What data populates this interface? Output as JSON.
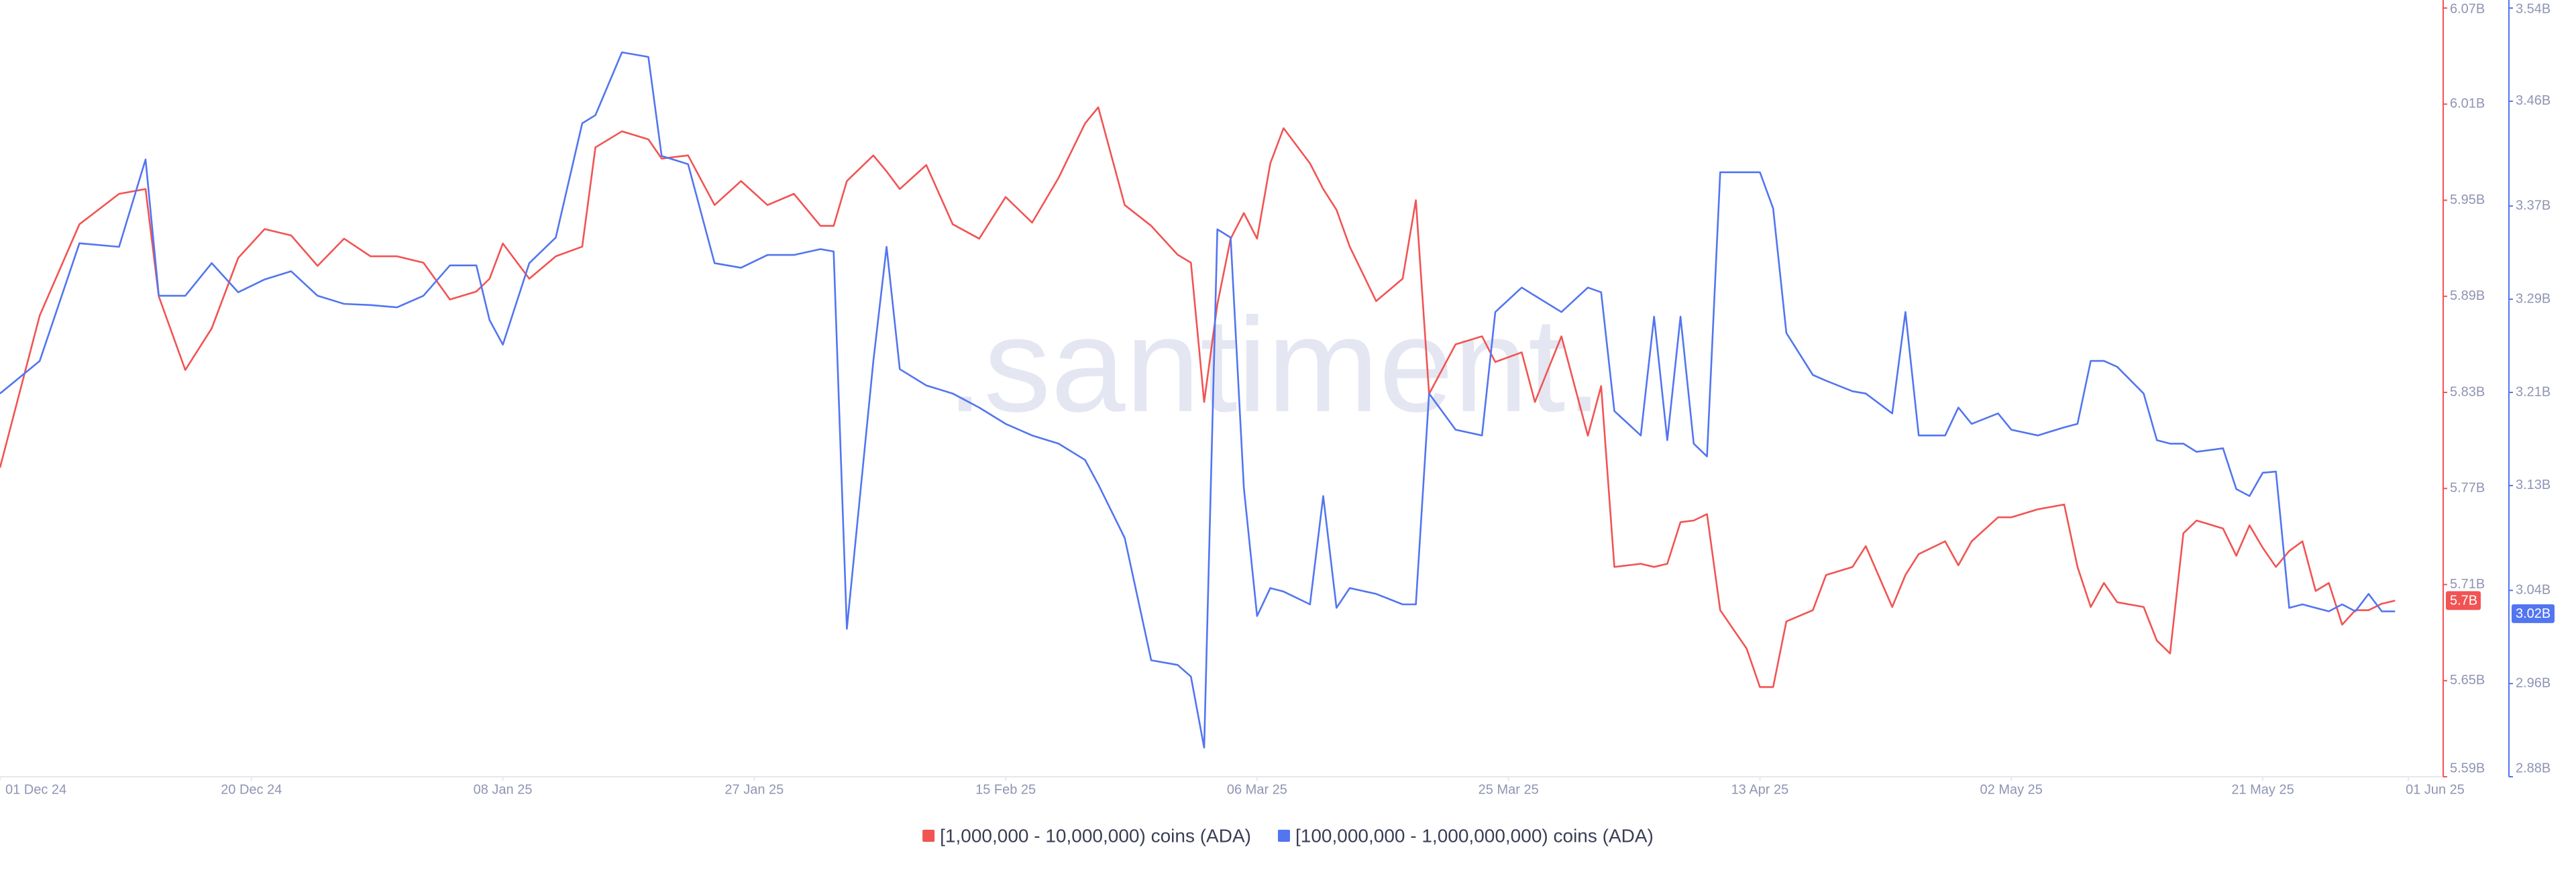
{
  "chart_data": {
    "type": "line",
    "watermark": ".santiment.",
    "x": [
      "2024-12-01",
      "2024-12-04",
      "2024-12-07",
      "2024-12-10",
      "2024-12-12",
      "2024-12-13",
      "2024-12-15",
      "2024-12-17",
      "2024-12-19",
      "2024-12-21",
      "2024-12-23",
      "2024-12-25",
      "2024-12-27",
      "2024-12-29",
      "2024-12-31",
      "2025-01-02",
      "2025-01-04",
      "2025-01-06",
      "2025-01-07",
      "2025-01-08",
      "2025-01-10",
      "2025-01-12",
      "2025-01-14",
      "2025-01-15",
      "2025-01-17",
      "2025-01-19",
      "2025-01-20",
      "2025-01-22",
      "2025-01-24",
      "2025-01-26",
      "2025-01-28",
      "2025-01-30",
      "2025-02-01",
      "2025-02-02",
      "2025-02-03",
      "2025-02-05",
      "2025-02-06",
      "2025-02-07",
      "2025-02-09",
      "2025-02-11",
      "2025-02-13",
      "2025-02-15",
      "2025-02-17",
      "2025-02-19",
      "2025-02-21",
      "2025-02-22",
      "2025-02-24",
      "2025-02-26",
      "2025-02-28",
      "2025-03-01",
      "2025-03-02",
      "2025-03-03",
      "2025-03-04",
      "2025-03-05",
      "2025-03-06",
      "2025-03-07",
      "2025-03-08",
      "2025-03-10",
      "2025-03-11",
      "2025-03-12",
      "2025-03-13",
      "2025-03-15",
      "2025-03-17",
      "2025-03-18",
      "2025-03-19",
      "2025-03-21",
      "2025-03-23",
      "2025-03-24",
      "2025-03-26",
      "2025-03-27",
      "2025-03-29",
      "2025-03-31",
      "2025-04-01",
      "2025-04-02",
      "2025-04-04",
      "2025-04-05",
      "2025-04-06",
      "2025-04-07",
      "2025-04-08",
      "2025-04-09",
      "2025-04-10",
      "2025-04-12",
      "2025-04-13",
      "2025-04-14",
      "2025-04-15",
      "2025-04-17",
      "2025-04-18",
      "2025-04-20",
      "2025-04-21",
      "2025-04-23",
      "2025-04-24",
      "2025-04-25",
      "2025-04-27",
      "2025-04-28",
      "2025-04-29",
      "2025-05-01",
      "2025-05-02",
      "2025-05-04",
      "2025-05-06",
      "2025-05-07",
      "2025-05-08",
      "2025-05-09",
      "2025-05-10",
      "2025-05-12",
      "2025-05-13",
      "2025-05-14",
      "2025-05-15",
      "2025-05-16",
      "2025-05-18",
      "2025-05-19",
      "2025-05-20",
      "2025-05-21",
      "2025-05-22",
      "2025-05-23",
      "2025-05-24",
      "2025-05-25",
      "2025-05-26",
      "2025-05-27",
      "2025-05-28",
      "2025-05-29",
      "2025-05-30",
      "2025-05-31"
    ],
    "xlim": [
      "2024-12-01",
      "2025-06-01"
    ],
    "xticks": [
      {
        "value": "2024-12-01",
        "label": "01 Dec 24"
      },
      {
        "value": "2024-12-20",
        "label": "20 Dec 24"
      },
      {
        "value": "2025-01-08",
        "label": "08 Jan 25"
      },
      {
        "value": "2025-01-27",
        "label": "27 Jan 25"
      },
      {
        "value": "2025-02-15",
        "label": "15 Feb 25"
      },
      {
        "value": "2025-03-06",
        "label": "06 Mar 25"
      },
      {
        "value": "2025-03-25",
        "label": "25 Mar 25"
      },
      {
        "value": "2025-04-13",
        "label": "13 Apr 25"
      },
      {
        "value": "2025-05-02",
        "label": "02 May 25"
      },
      {
        "value": "2025-05-21",
        "label": "21 May 25"
      },
      {
        "value": "2025-06-01",
        "label": "01 Jun 25"
      }
    ],
    "ylim": [
      5.59,
      6.07
    ],
    "yticks": [
      {
        "value": 5.59,
        "label": "5.59B"
      },
      {
        "value": 5.65,
        "label": "5.65B"
      },
      {
        "value": 5.71,
        "label": "5.71B"
      },
      {
        "value": 5.77,
        "label": "5.77B"
      },
      {
        "value": 5.83,
        "label": "5.83B"
      },
      {
        "value": 5.89,
        "label": "5.89B"
      },
      {
        "value": 5.95,
        "label": "5.95B"
      },
      {
        "value": 6.01,
        "label": "6.01B"
      },
      {
        "value": 6.07,
        "label": "6.07B"
      }
    ],
    "y2lim": [
      2.88,
      3.54
    ],
    "y2ticks": [
      {
        "value": 2.88,
        "label": "2.88B"
      },
      {
        "value": 2.96,
        "label": "2.96B"
      },
      {
        "value": 3.04,
        "label": "3.04B"
      },
      {
        "value": 3.13,
        "label": "3.13B"
      },
      {
        "value": 3.21,
        "label": "3.21B"
      },
      {
        "value": 3.29,
        "label": "3.29B"
      },
      {
        "value": 3.37,
        "label": "3.37B"
      },
      {
        "value": 3.46,
        "label": "3.46B"
      },
      {
        "value": 3.54,
        "label": "3.54B"
      }
    ],
    "series": [
      {
        "name": "[1,000,000 - 10,000,000) coins (ADA)",
        "color": "#f25353",
        "axis": "y",
        "last_value": {
          "value": 5.7,
          "label": "5.7B"
        },
        "values": [
          5.783,
          5.878,
          5.935,
          5.954,
          5.957,
          5.89,
          5.844,
          5.87,
          5.914,
          5.932,
          5.928,
          5.909,
          5.926,
          5.915,
          5.915,
          5.911,
          5.888,
          5.893,
          5.901,
          5.923,
          5.901,
          5.915,
          5.921,
          5.983,
          5.993,
          5.988,
          5.976,
          5.978,
          5.947,
          5.962,
          5.947,
          5.954,
          5.934,
          5.934,
          5.962,
          5.978,
          5.968,
          5.957,
          5.972,
          5.935,
          5.926,
          5.952,
          5.936,
          5.964,
          5.998,
          6.008,
          5.947,
          5.934,
          5.916,
          5.911,
          5.824,
          5.885,
          5.926,
          5.942,
          5.926,
          5.973,
          5.995,
          5.973,
          5.957,
          5.944,
          5.921,
          5.887,
          5.901,
          5.95,
          5.829,
          5.86,
          5.865,
          5.849,
          5.855,
          5.824,
          5.865,
          5.803,
          5.834,
          5.721,
          5.723,
          5.721,
          5.723,
          5.749,
          5.75,
          5.754,
          5.694,
          5.67,
          5.646,
          5.646,
          5.687,
          5.694,
          5.716,
          5.721,
          5.734,
          5.696,
          5.716,
          5.729,
          5.737,
          5.722,
          5.737,
          5.752,
          5.752,
          5.757,
          5.76,
          5.721,
          5.696,
          5.711,
          5.699,
          5.696,
          5.675,
          5.667,
          5.742,
          5.75,
          5.745,
          5.728,
          5.747,
          5.733,
          5.721,
          5.731,
          5.737,
          5.706,
          5.711,
          5.685,
          5.694,
          5.694,
          5.698,
          5.7
        ]
      },
      {
        "name": "[100,000,000 - 1,000,000,000) coins (ADA)",
        "color": "#5275f0",
        "axis": "y2",
        "last_value": {
          "value": 3.02,
          "label": "3.02B"
        },
        "values": [
          3.209,
          3.237,
          3.338,
          3.335,
          3.41,
          3.293,
          3.293,
          3.321,
          3.296,
          3.307,
          3.314,
          3.293,
          3.286,
          3.285,
          3.283,
          3.293,
          3.319,
          3.319,
          3.272,
          3.251,
          3.321,
          3.343,
          3.441,
          3.448,
          3.502,
          3.498,
          3.413,
          3.406,
          3.321,
          3.317,
          3.328,
          3.328,
          3.333,
          3.331,
          3.007,
          3.237,
          3.335,
          3.23,
          3.216,
          3.209,
          3.197,
          3.183,
          3.173,
          3.166,
          3.152,
          3.131,
          3.085,
          2.98,
          2.976,
          2.966,
          2.905,
          3.35,
          3.343,
          3.128,
          3.018,
          3.042,
          3.039,
          3.028,
          3.121,
          3.025,
          3.042,
          3.037,
          3.028,
          3.028,
          3.209,
          3.178,
          3.173,
          3.279,
          3.3,
          3.293,
          3.279,
          3.3,
          3.296,
          3.194,
          3.173,
          3.275,
          3.169,
          3.275,
          3.166,
          3.155,
          3.399,
          3.399,
          3.399,
          3.368,
          3.261,
          3.225,
          3.22,
          3.211,
          3.209,
          3.192,
          3.279,
          3.173,
          3.173,
          3.197,
          3.183,
          3.192,
          3.178,
          3.173,
          3.18,
          3.183,
          3.237,
          3.237,
          3.232,
          3.209,
          3.169,
          3.166,
          3.166,
          3.159,
          3.162,
          3.127,
          3.121,
          3.141,
          3.142,
          3.025,
          3.028,
          3.025,
          3.022,
          3.028,
          3.022,
          3.037,
          3.022,
          3.022
        ]
      }
    ]
  }
}
